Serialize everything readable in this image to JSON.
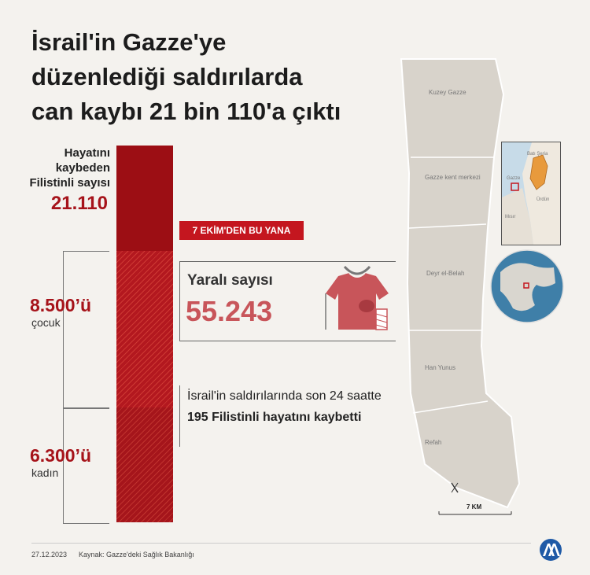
{
  "title_lines": [
    "İsrail'in Gazze'ye",
    "düzenlediği saldırılarda",
    "can kaybı 21 bin 110'a çıktı"
  ],
  "killed": {
    "label_lines": [
      "Hayatını",
      "kaybeden",
      "Filistinli sayısı"
    ],
    "value": "21.110"
  },
  "children": {
    "value": "8.500’ü",
    "label": "çocuk"
  },
  "women": {
    "value": "6.300’ü",
    "label": "kadın"
  },
  "badge": "7 EKİM'DEN  BU YANA",
  "wounded": {
    "label": "Yaralı sayısı",
    "value": "55.243"
  },
  "note": {
    "part1": "İsrail'in saldırılarında son 24 saatte ",
    "bold": "195 Filistinli hayatını kaybetti"
  },
  "map": {
    "labels": [
      "Kuzey Gazze",
      "Gazze kent merkezi",
      "Deyr el-Belah",
      "Han Yunus",
      "Refah"
    ],
    "scale": "7 KM",
    "inset_labels": [
      "Batı Şeria",
      "Gazze",
      "Ürdün",
      "Mısır"
    ]
  },
  "footer": {
    "date": "27.12.2023",
    "source": "Kaynak: Gazze'deki Sağlık Bakanlığı"
  },
  "colors": {
    "dark_red": "#9c0e14",
    "red": "#c4161f",
    "wounded": "#c8555a",
    "background": "#f4f2ee"
  }
}
